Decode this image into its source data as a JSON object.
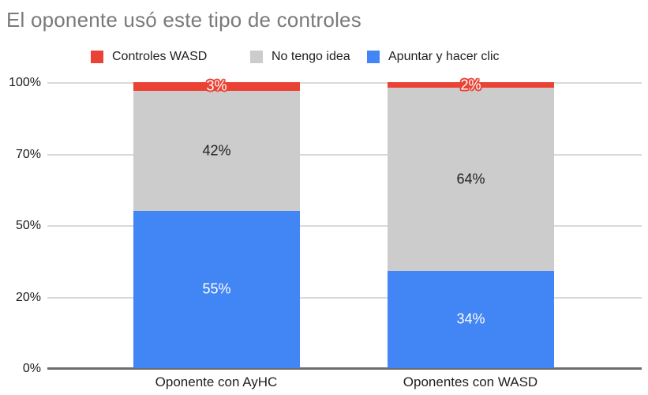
{
  "title": "El oponente usó este tipo de controles",
  "legend": [
    {
      "label": "Controles WASD",
      "color": "#ea4335"
    },
    {
      "label": "No tengo idea",
      "color": "#cccccc"
    },
    {
      "label": "Apuntar y hacer clic",
      "color": "#4285f4"
    }
  ],
  "y_axis": {
    "labels_top_to_bottom": [
      "100%",
      "70%",
      "50%",
      "20%",
      "0%"
    ]
  },
  "chart_data": {
    "type": "bar",
    "stacked": true,
    "title": "El oponente usó este tipo de controles",
    "categories": [
      "Oponente con AyHC",
      "Oponentes con WASD"
    ],
    "series": [
      {
        "name": "Apuntar y hacer clic",
        "color": "#4285f4",
        "values": [
          55,
          34
        ]
      },
      {
        "name": "No tengo idea",
        "color": "#cccccc",
        "values": [
          42,
          64
        ]
      },
      {
        "name": "Controles WASD",
        "color": "#ea4335",
        "values": [
          3,
          2
        ]
      }
    ],
    "value_label_suffix": "%",
    "xlabel": "",
    "ylabel": "",
    "ylim": [
      0,
      100
    ],
    "y_tick_labels": [
      "0%",
      "20%",
      "50%",
      "70%",
      "100%"
    ],
    "grid": true,
    "legend_position": "top"
  }
}
